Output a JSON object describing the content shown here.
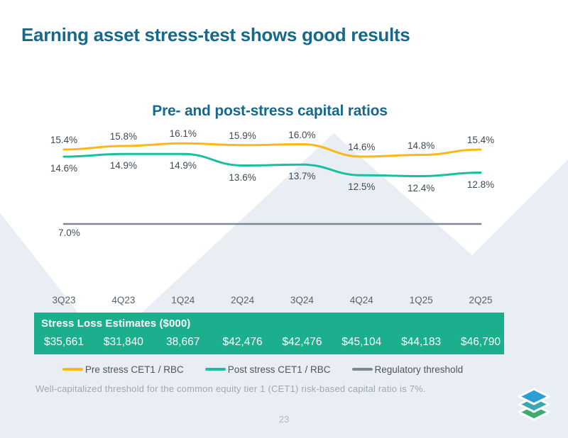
{
  "slide": {
    "title": "Earning asset stress-test shows good results",
    "page_number": "23",
    "footnote": "Well-capitalized threshold for the common equity tier 1 (CET1) risk-based capital ratio is 7%."
  },
  "chart_data": {
    "type": "line",
    "title": "Pre- and post-stress capital ratios",
    "categories": [
      "3Q23",
      "4Q23",
      "1Q24",
      "2Q24",
      "3Q24",
      "4Q24",
      "1Q25",
      "2Q25"
    ],
    "series": [
      {
        "name": "Pre stress CET1 / RBC",
        "color": "#FBB817",
        "values": [
          15.4,
          15.8,
          16.1,
          15.9,
          16.0,
          14.6,
          14.8,
          15.4
        ]
      },
      {
        "name": "Post stress CET1 / RBC",
        "color": "#19C0A0",
        "values": [
          14.6,
          14.9,
          14.9,
          13.6,
          13.7,
          12.5,
          12.4,
          12.8
        ]
      },
      {
        "name": "Regulatory threshold",
        "color": "#7D8893",
        "values": [
          7.0,
          7.0,
          7.0,
          7.0,
          7.0,
          7.0,
          7.0,
          7.0
        ],
        "threshold_label": "7.0%"
      }
    ],
    "value_suffix": "%",
    "ylim": [
      6.5,
      17.5
    ],
    "grid": false,
    "legend_position": "bottom",
    "data_labels": true
  },
  "table": {
    "header": "Stress Loss Estimates ($000)",
    "values": [
      "$35,661",
      "$31,840",
      "38,667",
      "$42,476",
      "$42,476",
      "$45,104",
      "$44,183",
      "$46,790"
    ],
    "background": "#1BAF8D"
  },
  "colors": {
    "title_teal": "#16698B",
    "background_shapes": "#E9EEF4",
    "data_label": "#3E4A56",
    "axis_label": "#59636D",
    "footnote_gray": "#9EA7B1",
    "logo_blue": "#2D9DD5",
    "logo_teal": "#3BA7B0",
    "logo_green": "#3EAC71"
  }
}
